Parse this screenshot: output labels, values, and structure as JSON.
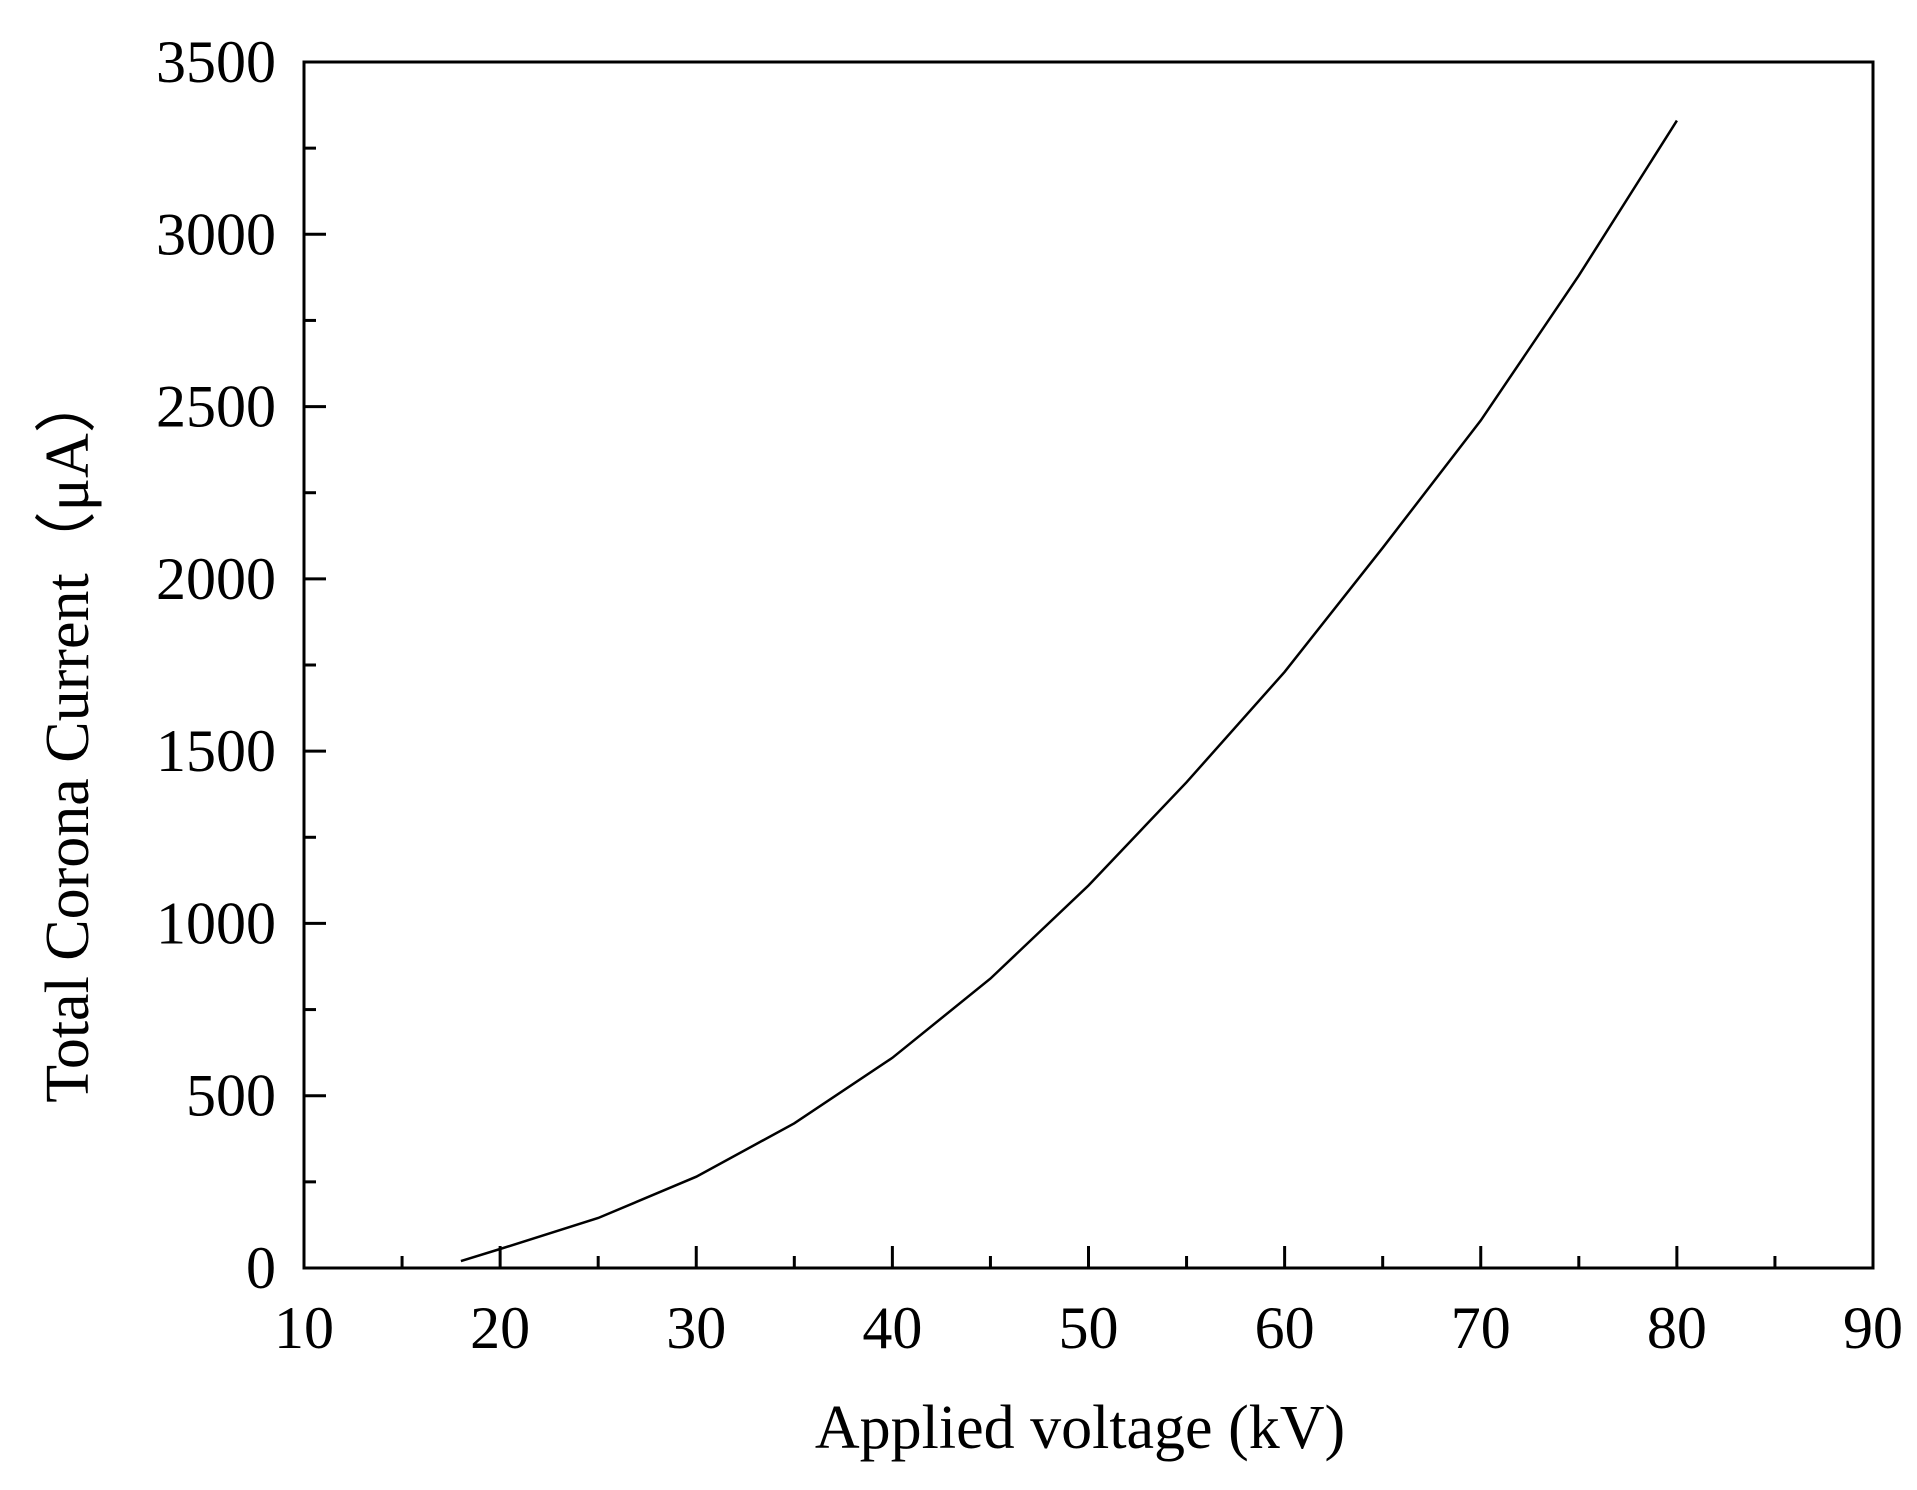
{
  "chart_data": {
    "type": "line",
    "title": "",
    "xlabel": "Applied voltage (kV)",
    "ylabel": "Total Corona Current（μA）",
    "xlim": [
      10,
      90
    ],
    "ylim": [
      0,
      3500
    ],
    "x_ticks": [
      10,
      20,
      30,
      40,
      50,
      60,
      70,
      80,
      90
    ],
    "y_ticks": [
      0,
      500,
      1000,
      1500,
      2000,
      2500,
      3000,
      3500
    ],
    "x_ticks_text": [
      "10",
      "20",
      "30",
      "40",
      "50",
      "60",
      "70",
      "80",
      "90"
    ],
    "y_ticks_text": [
      "0",
      "500",
      "1000",
      "1500",
      "2000",
      "2500",
      "3000",
      "3500"
    ],
    "x_minor_step": 5,
    "y_minor_step": 250,
    "grid": false,
    "legend": "none",
    "line_color": "#000000",
    "series": [
      {
        "x": [
          18,
          20,
          25,
          30,
          35,
          40,
          45,
          50,
          55,
          60,
          65,
          70,
          75,
          80
        ],
        "y": [
          20,
          55,
          145,
          265,
          420,
          610,
          840,
          1110,
          1410,
          1730,
          2090,
          2460,
          2880,
          3330
        ]
      }
    ]
  }
}
